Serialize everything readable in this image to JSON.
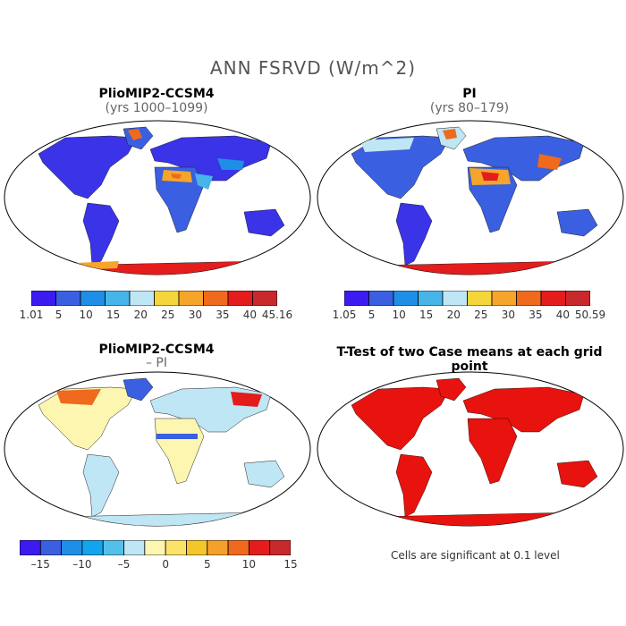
{
  "figure": {
    "title": "ANN FSRVD (W/m^2)",
    "note": "Cells are significant at 0.1 level"
  },
  "panels": [
    {
      "id": "pliomip",
      "title": "PlioMIP2-CCSM4",
      "subtitle": "(yrs 1000–1099)",
      "colorbar": {
        "colors": [
          "#3b1bf0",
          "#3a5fe0",
          "#1f8ee6",
          "#48b5ea",
          "#bfe6f4",
          "#f5d63a",
          "#f5a52a",
          "#ef6a1c",
          "#e51c1c",
          "#c8292c"
        ],
        "labels": [
          "1.01",
          "5",
          "10",
          "15",
          "20",
          "25",
          "30",
          "35",
          "40",
          "45.16"
        ]
      }
    },
    {
      "id": "pi",
      "title": "PI",
      "subtitle": "(yrs 80–179)",
      "colorbar": {
        "colors": [
          "#3b1bf0",
          "#3a5fe0",
          "#1f8ee6",
          "#48b5ea",
          "#bfe6f4",
          "#f5d63a",
          "#f5a52a",
          "#ef6a1c",
          "#e51c1c",
          "#c8292c"
        ],
        "labels": [
          "1.05",
          "5",
          "10",
          "15",
          "20",
          "25",
          "30",
          "35",
          "40",
          "50.59"
        ]
      }
    },
    {
      "id": "diff",
      "title": "PlioMIP2-CCSM4",
      "subtitle": "– PI",
      "colorbar": {
        "colors": [
          "#3b1bf0",
          "#3a5fe0",
          "#1f8ee6",
          "#13a4ee",
          "#53c0ec",
          "#bfe6f4",
          "#fdf6b0",
          "#fbe36a",
          "#f5c52c",
          "#f5a02a",
          "#ef6a1c",
          "#e51c1c",
          "#c8292c"
        ],
        "labels": [
          "–15",
          "–10",
          "–5",
          "0",
          "5",
          "10",
          "15"
        ]
      }
    },
    {
      "id": "ttest",
      "title": "T-Test of two Case means at each grid point",
      "subtitle": ""
    }
  ],
  "legend_colors": {
    "significant": "#e8120e",
    "ocean": "#ffffff",
    "outline": "#000000"
  }
}
